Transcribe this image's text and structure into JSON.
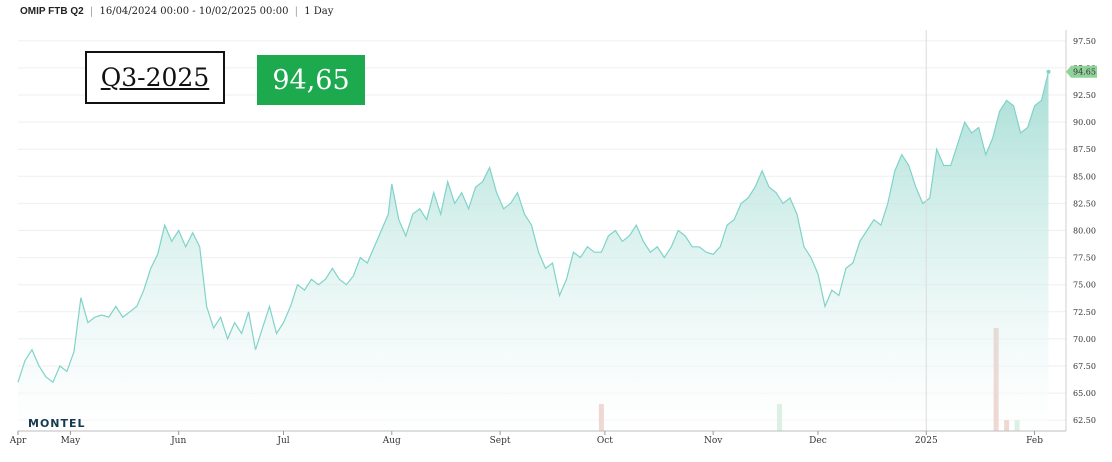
{
  "header": {
    "instrument": "OMIP FTB Q2",
    "range": "16/04/2024 00:00 - 10/02/2025 00:00",
    "interval": "1 Day"
  },
  "badges": {
    "period": "Q3-2025",
    "price": "94,65",
    "price_color": "#1daa4f"
  },
  "logo": "MONTEL",
  "chart_data": {
    "type": "area",
    "x_start": "2024-04-16",
    "x_end": "2025-02-10",
    "ylim": [
      61.5,
      98.5
    ],
    "y_ticks": [
      62.5,
      65.0,
      67.5,
      70.0,
      72.5,
      75.0,
      77.5,
      80.0,
      82.5,
      85.0,
      87.5,
      90.0,
      92.5,
      95.0,
      97.5
    ],
    "y_tick_labels": [
      "62.50",
      "65.00",
      "67.50",
      "70.00",
      "72.50",
      "75.00",
      "77.50",
      "80.00",
      "82.50",
      "85.00",
      "87.50",
      "90.00",
      "92.50",
      "95.00",
      "97.50"
    ],
    "x_tick_labels": [
      {
        "date": "2024-04-16",
        "label": "Apr"
      },
      {
        "date": "2024-05-01",
        "label": "May"
      },
      {
        "date": "2024-06-01",
        "label": "Jun"
      },
      {
        "date": "2024-07-01",
        "label": "Jul"
      },
      {
        "date": "2024-08-01",
        "label": "Aug"
      },
      {
        "date": "2024-09-01",
        "label": "Sept"
      },
      {
        "date": "2024-10-01",
        "label": "Oct"
      },
      {
        "date": "2024-11-01",
        "label": "Nov"
      },
      {
        "date": "2024-12-01",
        "label": "Dec"
      },
      {
        "date": "2025-01-01",
        "label": "2025"
      },
      {
        "date": "2025-02-01",
        "label": "Feb"
      }
    ],
    "last_value": 94.65,
    "last_value_label": "94.65",
    "series": [
      {
        "color": "#7fd3c9",
        "points": [
          [
            "2024-04-16",
            66.0
          ],
          [
            "2024-04-18",
            68.0
          ],
          [
            "2024-04-20",
            69.0
          ],
          [
            "2024-04-22",
            67.5
          ],
          [
            "2024-04-24",
            66.5
          ],
          [
            "2024-04-26",
            66.0
          ],
          [
            "2024-04-28",
            67.5
          ],
          [
            "2024-04-30",
            67.0
          ],
          [
            "2024-05-02",
            68.8
          ],
          [
            "2024-05-04",
            73.8
          ],
          [
            "2024-05-06",
            71.5
          ],
          [
            "2024-05-08",
            72.0
          ],
          [
            "2024-05-10",
            72.2
          ],
          [
            "2024-05-12",
            72.0
          ],
          [
            "2024-05-14",
            73.0
          ],
          [
            "2024-05-16",
            72.0
          ],
          [
            "2024-05-18",
            72.5
          ],
          [
            "2024-05-20",
            73.0
          ],
          [
            "2024-05-22",
            74.5
          ],
          [
            "2024-05-24",
            76.5
          ],
          [
            "2024-05-26",
            77.8
          ],
          [
            "2024-05-28",
            80.5
          ],
          [
            "2024-05-30",
            79.0
          ],
          [
            "2024-06-01",
            80.0
          ],
          [
            "2024-06-03",
            78.5
          ],
          [
            "2024-06-05",
            79.8
          ],
          [
            "2024-06-07",
            78.5
          ],
          [
            "2024-06-09",
            73.0
          ],
          [
            "2024-06-11",
            71.0
          ],
          [
            "2024-06-13",
            72.0
          ],
          [
            "2024-06-15",
            70.0
          ],
          [
            "2024-06-17",
            71.5
          ],
          [
            "2024-06-19",
            70.5
          ],
          [
            "2024-06-21",
            72.5
          ],
          [
            "2024-06-23",
            69.0
          ],
          [
            "2024-06-25",
            71.0
          ],
          [
            "2024-06-27",
            73.0
          ],
          [
            "2024-06-29",
            70.5
          ],
          [
            "2024-07-01",
            71.5
          ],
          [
            "2024-07-03",
            73.0
          ],
          [
            "2024-07-05",
            75.0
          ],
          [
            "2024-07-07",
            74.5
          ],
          [
            "2024-07-09",
            75.5
          ],
          [
            "2024-07-11",
            75.0
          ],
          [
            "2024-07-13",
            75.5
          ],
          [
            "2024-07-15",
            76.5
          ],
          [
            "2024-07-17",
            75.5
          ],
          [
            "2024-07-19",
            75.0
          ],
          [
            "2024-07-21",
            75.8
          ],
          [
            "2024-07-23",
            77.5
          ],
          [
            "2024-07-25",
            77.0
          ],
          [
            "2024-07-27",
            78.5
          ],
          [
            "2024-07-29",
            80.0
          ],
          [
            "2024-07-31",
            81.5
          ],
          [
            "2024-08-01",
            84.3
          ],
          [
            "2024-08-03",
            81.0
          ],
          [
            "2024-08-05",
            79.5
          ],
          [
            "2024-08-07",
            81.5
          ],
          [
            "2024-08-09",
            82.0
          ],
          [
            "2024-08-11",
            81.0
          ],
          [
            "2024-08-13",
            83.5
          ],
          [
            "2024-08-15",
            81.5
          ],
          [
            "2024-08-17",
            84.5
          ],
          [
            "2024-08-19",
            82.5
          ],
          [
            "2024-08-21",
            83.5
          ],
          [
            "2024-08-23",
            82.0
          ],
          [
            "2024-08-25",
            84.0
          ],
          [
            "2024-08-27",
            84.5
          ],
          [
            "2024-08-29",
            85.8
          ],
          [
            "2024-08-31",
            83.5
          ],
          [
            "2024-09-02",
            82.0
          ],
          [
            "2024-09-04",
            82.5
          ],
          [
            "2024-09-06",
            83.5
          ],
          [
            "2024-09-08",
            81.5
          ],
          [
            "2024-09-10",
            80.5
          ],
          [
            "2024-09-12",
            78.0
          ],
          [
            "2024-09-14",
            76.5
          ],
          [
            "2024-09-16",
            77.0
          ],
          [
            "2024-09-18",
            74.0
          ],
          [
            "2024-09-20",
            75.5
          ],
          [
            "2024-09-22",
            78.0
          ],
          [
            "2024-09-24",
            77.5
          ],
          [
            "2024-09-26",
            78.5
          ],
          [
            "2024-09-28",
            78.0
          ],
          [
            "2024-09-30",
            78.0
          ],
          [
            "2024-10-02",
            79.5
          ],
          [
            "2024-10-04",
            80.0
          ],
          [
            "2024-10-06",
            79.0
          ],
          [
            "2024-10-08",
            79.5
          ],
          [
            "2024-10-10",
            80.5
          ],
          [
            "2024-10-12",
            79.0
          ],
          [
            "2024-10-14",
            78.0
          ],
          [
            "2024-10-16",
            78.5
          ],
          [
            "2024-10-18",
            77.5
          ],
          [
            "2024-10-20",
            78.5
          ],
          [
            "2024-10-22",
            80.0
          ],
          [
            "2024-10-24",
            79.5
          ],
          [
            "2024-10-26",
            78.5
          ],
          [
            "2024-10-28",
            78.5
          ],
          [
            "2024-10-30",
            78.0
          ],
          [
            "2024-11-01",
            77.8
          ],
          [
            "2024-11-03",
            78.5
          ],
          [
            "2024-11-05",
            80.5
          ],
          [
            "2024-11-07",
            81.0
          ],
          [
            "2024-11-09",
            82.5
          ],
          [
            "2024-11-11",
            83.0
          ],
          [
            "2024-11-13",
            84.0
          ],
          [
            "2024-11-15",
            85.5
          ],
          [
            "2024-11-17",
            84.0
          ],
          [
            "2024-11-19",
            83.5
          ],
          [
            "2024-11-21",
            82.5
          ],
          [
            "2024-11-23",
            83.0
          ],
          [
            "2024-11-25",
            81.5
          ],
          [
            "2024-11-27",
            78.5
          ],
          [
            "2024-11-29",
            77.5
          ],
          [
            "2024-12-01",
            76.0
          ],
          [
            "2024-12-03",
            73.0
          ],
          [
            "2024-12-05",
            74.5
          ],
          [
            "2024-12-07",
            74.0
          ],
          [
            "2024-12-09",
            76.5
          ],
          [
            "2024-12-11",
            77.0
          ],
          [
            "2024-12-13",
            79.0
          ],
          [
            "2024-12-15",
            80.0
          ],
          [
            "2024-12-17",
            81.0
          ],
          [
            "2024-12-19",
            80.5
          ],
          [
            "2024-12-21",
            82.5
          ],
          [
            "2024-12-23",
            85.5
          ],
          [
            "2024-12-25",
            87.0
          ],
          [
            "2024-12-27",
            86.0
          ],
          [
            "2024-12-29",
            84.0
          ],
          [
            "2024-12-31",
            82.5
          ],
          [
            "2025-01-02",
            83.0
          ],
          [
            "2025-01-04",
            87.5
          ],
          [
            "2025-01-06",
            86.0
          ],
          [
            "2025-01-08",
            86.0
          ],
          [
            "2025-01-10",
            88.0
          ],
          [
            "2025-01-12",
            90.0
          ],
          [
            "2025-01-14",
            89.0
          ],
          [
            "2025-01-16",
            89.5
          ],
          [
            "2025-01-18",
            87.0
          ],
          [
            "2025-01-20",
            88.5
          ],
          [
            "2025-01-22",
            91.0
          ],
          [
            "2025-01-24",
            92.0
          ],
          [
            "2025-01-26",
            91.5
          ],
          [
            "2025-01-28",
            89.0
          ],
          [
            "2025-01-30",
            89.5
          ],
          [
            "2025-02-01",
            91.5
          ],
          [
            "2025-02-03",
            92.0
          ],
          [
            "2025-02-05",
            94.65
          ]
        ]
      }
    ],
    "volume_bars": [
      {
        "date": "2024-09-30",
        "height_value": 2.5,
        "color": "#e6bdb5"
      },
      {
        "date": "2024-11-20",
        "height_value": 2.5,
        "color": "#c6e6d2"
      },
      {
        "date": "2025-01-21",
        "height_value": 9.5,
        "color": "#e6bdb5"
      },
      {
        "date": "2025-01-24",
        "height_value": 1.0,
        "color": "#e6bdb5"
      },
      {
        "date": "2025-01-27",
        "height_value": 1.0,
        "color": "#c6e6d2"
      }
    ]
  }
}
